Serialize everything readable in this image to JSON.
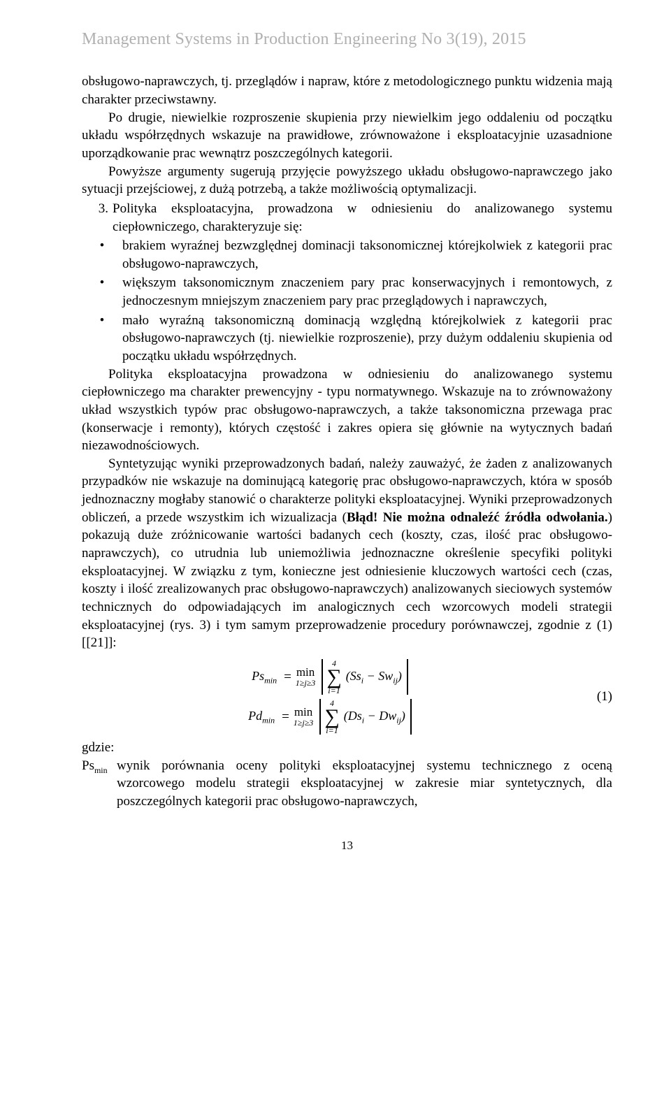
{
  "header": "Management Systems in Production Engineering No 3(19), 2015",
  "p1": "obsługowo-naprawczych, tj. przeglądów i napraw, które z metodologicznego punktu widzenia mają charakter przeciwstawny.",
  "p2": "Po drugie, niewielkie rozproszenie skupienia przy niewielkim jego oddaleniu od początku układu współrzędnych wskazuje na prawidłowe, zrównoważone i eksploatacyjnie uzasadnione uporządkowanie prac wewnątrz poszczególnych kategorii.",
  "p3": "Powyższe argumenty sugerują przyjęcie powyższego układu obsługowo-naprawczego jako sytuacji przejściowej, z dużą potrzebą, a także możliwością optymalizacji.",
  "item3_num": "3.",
  "item3_text": "Polityka eksploatacyjna, prowadzona w odniesieniu do analizowanego systemu ciepłowniczego, charakteryzuje się:",
  "b1": "brakiem wyraźnej bezwzględnej dominacji taksonomicznej którejkolwiek z kategorii prac obsługowo-naprawczych,",
  "b2": "większym taksonomicznym znaczeniem pary prac konserwacyjnych i remontowych, z jednoczesnym mniejszym znaczeniem pary prac przeglądowych i naprawczych,",
  "b3": "mało wyraźną taksonomiczną dominacją względną którejkolwiek z kategorii prac obsługowo-naprawczych (tj. niewielkie rozproszenie), przy dużym oddaleniu skupienia od początku układu współrzędnych.",
  "p4": "Polityka eksploatacyjna prowadzona w odniesieniu do analizowanego systemu ciepłowniczego ma charakter prewencyjny - typu normatywnego. Wskazuje na to zrównoważony układ wszystkich typów prac obsługowo-naprawczych, a także taksonomiczna przewaga prac (konserwacje i remonty), których częstość i zakres opiera się głównie na wytycznych badań niezawodnościowych.",
  "p5a": "Syntetyzując wyniki przeprowadzonych badań, należy zauważyć, że żaden z analizowanych przypadków nie wskazuje na dominującą kategorię prac obsługowo-naprawczych, która w sposób jednoznaczny mogłaby stanowić o charakterze polityki eksploatacyjnej. Wyniki przeprowadzonych obliczeń, a przede wszystkim ich wizualizacja (",
  "p5b": "Błąd! Nie można odnaleźć źródła odwołania.",
  "p5c": ") pokazują duże zróżnicowanie wartości badanych cech (koszty, czas, ilość prac obsługowo-naprawczych), co utrudnia lub uniemożliwia jednoznaczne określenie specyfiki polityki eksploatacyjnej. W związku z tym, konieczne jest odniesienie kluczowych wartości cech (czas, koszty i ilość zrealizowanych prac obsługowo-naprawczych) analizowanych sieciowych systemów technicznych do odpowiadających im analogicznych cech wzorcowych modeli strategii eksploatacyjnej (rys. 3) i tym samym przeprowadzenie procedury porównawczej, zgodnie z (1) [[21]]:",
  "formula": {
    "ps_label": "Ps",
    "pd_label": "Pd",
    "min_sub": "min",
    "min_word": "min",
    "j_range": "1≥j≥3",
    "sum_upper": "4",
    "sum_lower": "i=1",
    "ss": "Ss",
    "sw": "Sw",
    "ds": "Ds",
    "dw": "Dw",
    "i": "i",
    "ij": "ij",
    "eqnum": "(1)"
  },
  "gdzie": "gdzie:",
  "psmin_sym": "Ps",
  "psmin_sub": "min",
  "psmin_def": "wynik porównania oceny polityki eksploatacyjnej systemu technicznego z oceną wzorcowego modelu strategii eksploatacyjnej w zakresie miar syntetycznych, dla poszczególnych kategorii prac obsługowo-naprawczych,",
  "pagenum": "13"
}
